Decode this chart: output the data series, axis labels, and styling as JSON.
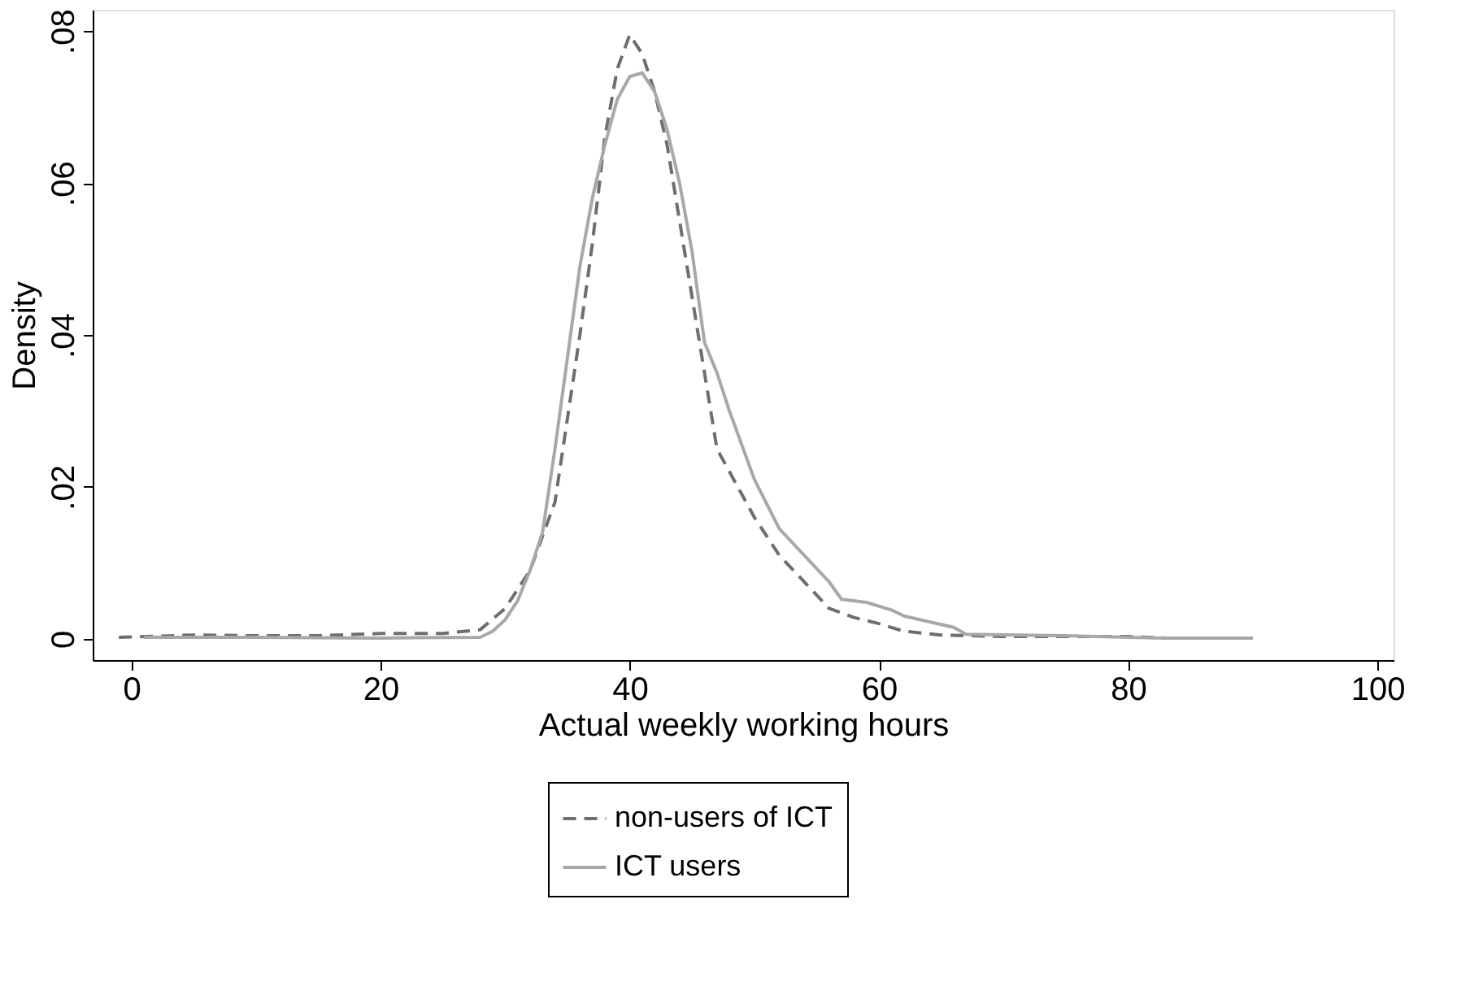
{
  "chart_data": {
    "type": "line",
    "xlabel": "Actual weekly working hours",
    "ylabel": "Density",
    "xlim": [
      -3.1,
      101.3
    ],
    "ylim": [
      -0.0028,
      0.0828
    ],
    "xticks": [
      0,
      20,
      40,
      60,
      80,
      100
    ],
    "yticks": [
      {
        "value": 0,
        "label": "0"
      },
      {
        "value": 0.02,
        "label": ".02"
      },
      {
        "value": 0.04,
        "label": ".04"
      },
      {
        "value": 0.06,
        "label": ".06"
      },
      {
        "value": 0.08,
        "label": ".08"
      }
    ],
    "grid": false,
    "legend": "bottom",
    "marker": "none",
    "series": [
      {
        "name": "non-users of ICT",
        "color": "#6e6e70",
        "line_style": "dashed",
        "x": [
          -1,
          5,
          10,
          15,
          20,
          25,
          28,
          30,
          32,
          34,
          36,
          37,
          38,
          39,
          40,
          41,
          42,
          43,
          44,
          45,
          46,
          47,
          48,
          50,
          52,
          54,
          56,
          58,
          60,
          62,
          65,
          70,
          80,
          83,
          90
        ],
        "values": [
          0.0002,
          0.0005,
          0.0004,
          0.0004,
          0.0007,
          0.0007,
          0.0012,
          0.004,
          0.009,
          0.018,
          0.04,
          0.052,
          0.066,
          0.075,
          0.0795,
          0.077,
          0.072,
          0.065,
          0.055,
          0.045,
          0.035,
          0.025,
          0.022,
          0.016,
          0.011,
          0.0075,
          0.004,
          0.0028,
          0.002,
          0.001,
          0.0005,
          0.0003,
          0.0003,
          0.0001,
          0.0001
        ]
      },
      {
        "name": "ICT users",
        "color": "#a8a8a8",
        "line_style": "solid",
        "x": [
          1,
          10,
          20,
          28,
          29,
          30,
          31,
          32,
          33,
          34,
          35,
          36,
          37,
          38,
          39,
          40,
          41,
          42,
          43,
          44,
          45,
          46,
          47,
          48,
          50,
          52,
          54,
          56,
          57,
          59,
          61,
          62,
          66,
          67,
          75,
          80,
          83,
          90
        ],
        "values": [
          0.0002,
          0.0002,
          0.0001,
          0.0002,
          0.001,
          0.0025,
          0.005,
          0.009,
          0.014,
          0.025,
          0.037,
          0.049,
          0.058,
          0.065,
          0.071,
          0.074,
          0.0745,
          0.072,
          0.067,
          0.06,
          0.051,
          0.039,
          0.035,
          0.03,
          0.021,
          0.0145,
          0.011,
          0.0075,
          0.0052,
          0.0048,
          0.0038,
          0.003,
          0.0015,
          0.0006,
          0.0004,
          0.0002,
          0.0001,
          0.0001
        ]
      }
    ]
  }
}
